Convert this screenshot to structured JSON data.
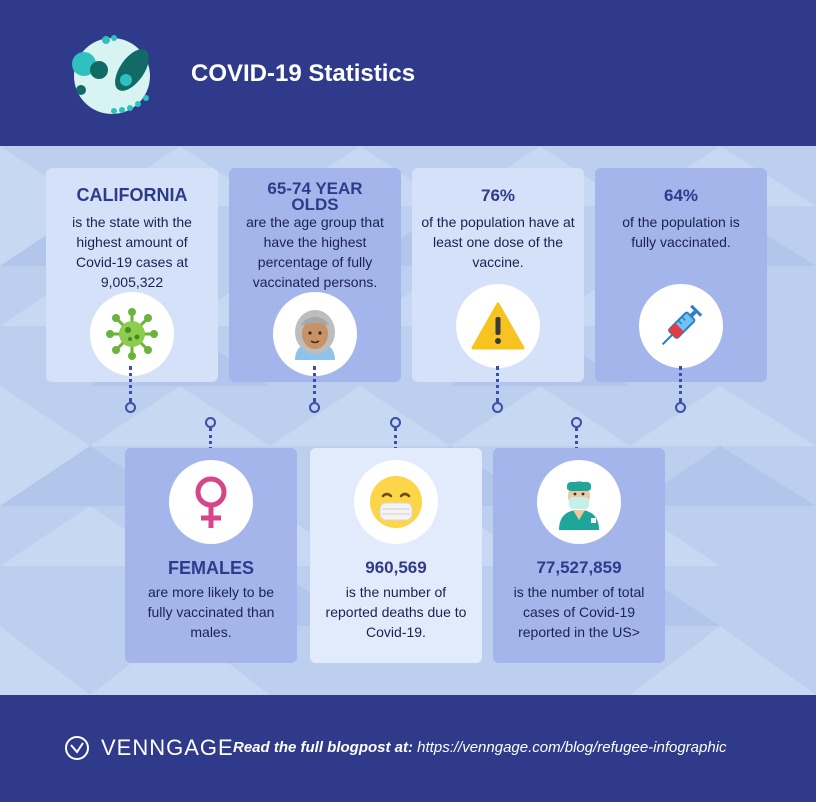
{
  "header": {
    "title": "COVID-19 Statistics",
    "logo_icon": "virus-cell-icon"
  },
  "top_cards": [
    {
      "head": "CALIFORNIA",
      "body": "is the state with the highest amount of Covid-19 cases at 9,005,322",
      "icon": "virus-icon"
    },
    {
      "head": "65-74 YEAR OLDS",
      "body": "are the age group that have the highest percentage of fully vaccinated persons.",
      "icon": "elderly-woman-icon"
    },
    {
      "head": "76%",
      "body": "of the population have at least one dose of the vaccine.",
      "icon": "warning-icon"
    },
    {
      "head": "64%",
      "body": "of the population is fully vaccinated.",
      "icon": "syringe-icon"
    }
  ],
  "bottom_cards": [
    {
      "head": "FEMALES",
      "body": "are more likely to be fully vaccinated than males.",
      "icon": "female-symbol-icon"
    },
    {
      "head": "960,569",
      "body": "is the number of reported deaths due to Covid-19.",
      "icon": "masked-face-icon"
    },
    {
      "head": "77,527,859",
      "body": "is the number of total cases of Covid-19 reported in the US>",
      "icon": "doctor-icon"
    }
  ],
  "footer": {
    "brand": "VENNGAGE",
    "read_label": "Read the full blogpost at:",
    "url": "https://venngage.com/blog/refugee-infographic"
  },
  "colors": {
    "primary": "#2f3b8a",
    "card_light": "#d4e1f8",
    "card_mid": "#a4b5eb",
    "accent_teal": "#1ea69a"
  }
}
